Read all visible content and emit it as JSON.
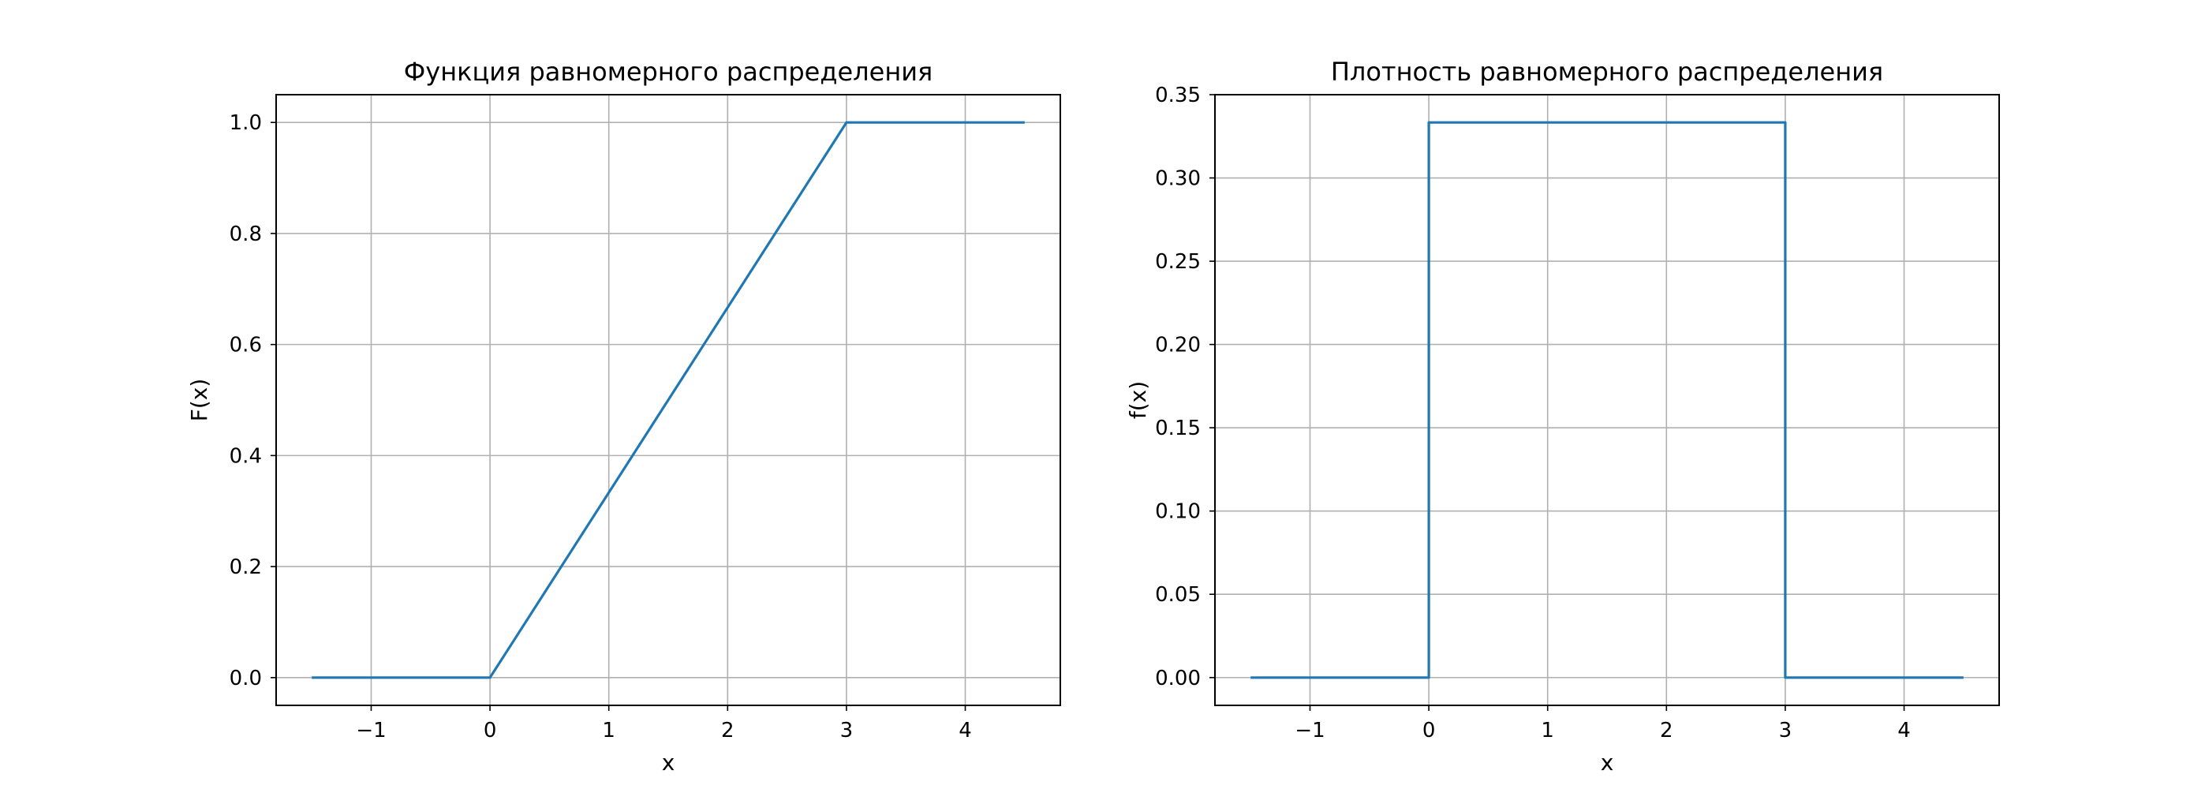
{
  "chart_data": [
    {
      "type": "line",
      "title": "Функция равномерного распределения",
      "xlabel": "x",
      "ylabel": "F(x)",
      "xlim": [
        -1.8,
        4.8
      ],
      "ylim": [
        -0.05,
        1.05
      ],
      "xticks": [
        -1,
        0,
        1,
        2,
        3,
        4
      ],
      "xtick_labels": [
        "−1",
        "0",
        "1",
        "2",
        "3",
        "4"
      ],
      "yticks": [
        0.0,
        0.2,
        0.4,
        0.6,
        0.8,
        1.0
      ],
      "ytick_labels": [
        "0.0",
        "0.2",
        "0.4",
        "0.6",
        "0.8",
        "1.0"
      ],
      "grid": true,
      "series": [
        {
          "color": "#1f77b4",
          "x": [
            -1.5,
            0,
            3,
            4.5
          ],
          "y": [
            0,
            0,
            1,
            1
          ]
        }
      ]
    },
    {
      "type": "line",
      "title": "Плотность равномерного распределения",
      "xlabel": "x",
      "ylabel": "f(x)",
      "xlim": [
        -1.8,
        4.8
      ],
      "ylim": [
        -0.0167,
        0.35
      ],
      "xticks": [
        -1,
        0,
        1,
        2,
        3,
        4
      ],
      "xtick_labels": [
        "−1",
        "0",
        "1",
        "2",
        "3",
        "4"
      ],
      "yticks": [
        0.0,
        0.05,
        0.1,
        0.15,
        0.2,
        0.25,
        0.3,
        0.35
      ],
      "ytick_labels": [
        "0.00",
        "0.05",
        "0.10",
        "0.15",
        "0.20",
        "0.25",
        "0.30",
        "0.35"
      ],
      "grid": true,
      "series": [
        {
          "color": "#1f77b4",
          "x": [
            -1.5,
            0,
            0,
            3,
            3,
            4.5
          ],
          "y": [
            0,
            0,
            0.3333,
            0.3333,
            0,
            0
          ]
        }
      ]
    }
  ]
}
